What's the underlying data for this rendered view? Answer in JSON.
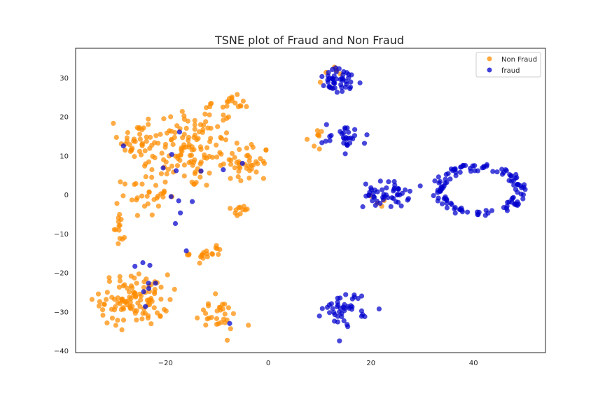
{
  "chart_data": {
    "type": "scatter",
    "title": "TSNE plot of Fraud and Non Fraud",
    "xlabel": "",
    "ylabel": "",
    "xlim": [
      -37.5,
      54
    ],
    "ylim": [
      -40.5,
      37.5
    ],
    "x_ticks": [
      -20,
      0,
      20,
      40
    ],
    "y_ticks": [
      -40,
      -30,
      -20,
      -10,
      0,
      10,
      20,
      30
    ],
    "x_tick_labels": [
      "−20",
      "0",
      "20",
      "40"
    ],
    "y_tick_labels": [
      "−40",
      "−30",
      "−20",
      "−10",
      "0",
      "10",
      "20",
      "30"
    ],
    "grid": false,
    "legend_position": "top-right",
    "series": [
      {
        "name": "Non Fraud",
        "color": "#ff8c00",
        "clusters": [
          {
            "cx": -16,
            "cy": 12,
            "rx": 10,
            "ry": 10,
            "n": 140,
            "shape": "blob"
          },
          {
            "cx": -26,
            "cy": 14,
            "rx": 3,
            "ry": 4,
            "n": 25,
            "shape": "blob"
          },
          {
            "cx": -4,
            "cy": 8,
            "rx": 4,
            "ry": 5,
            "n": 40,
            "shape": "blob"
          },
          {
            "cx": -8,
            "cy": 23,
            "rx": 4,
            "ry": 2,
            "n": 20,
            "shape": "blob"
          },
          {
            "cx": -24,
            "cy": 0,
            "rx": 4,
            "ry": 5,
            "n": 30,
            "shape": "blob"
          },
          {
            "cx": -29,
            "cy": -8,
            "rx": 1,
            "ry": 6,
            "n": 14,
            "shape": "blob"
          },
          {
            "cx": -26,
            "cy": -27,
            "rx": 6,
            "ry": 6,
            "n": 110,
            "shape": "blob"
          },
          {
            "cx": -10,
            "cy": -31,
            "rx": 4,
            "ry": 4,
            "n": 30,
            "shape": "blob"
          },
          {
            "cx": -12,
            "cy": -15,
            "rx": 3,
            "ry": 2,
            "n": 20,
            "shape": "blob"
          },
          {
            "cx": -5,
            "cy": -4,
            "rx": 2,
            "ry": 1,
            "n": 10,
            "shape": "blob"
          },
          {
            "cx": 8,
            "cy": 14,
            "rx": 2,
            "ry": 2,
            "n": 8,
            "shape": "blob"
          },
          {
            "cx": 14,
            "cy": 30,
            "rx": 3,
            "ry": 3,
            "n": 6,
            "shape": "blob"
          },
          {
            "cx": 22,
            "cy": -2,
            "rx": 3,
            "ry": 2,
            "n": 4,
            "shape": "blob"
          }
        ]
      },
      {
        "name": "fraud",
        "color": "#0000cd",
        "clusters": [
          {
            "cx": 14,
            "cy": 29,
            "rx": 4,
            "ry": 3,
            "n": 45,
            "shape": "blob"
          },
          {
            "cx": 15,
            "cy": 15,
            "rx": 4,
            "ry": 3,
            "n": 30,
            "shape": "blob"
          },
          {
            "cx": 23,
            "cy": 0,
            "rx": 4,
            "ry": 3,
            "n": 50,
            "shape": "blob"
          },
          {
            "cx": 15,
            "cy": -29,
            "rx": 4,
            "ry": 4,
            "n": 45,
            "shape": "blob"
          },
          {
            "cx": 41,
            "cy": 1,
            "rx": 8,
            "ry": 6,
            "n": 120,
            "shape": "ring"
          },
          {
            "cx": -15,
            "cy": 0,
            "rx": 10,
            "ry": 20,
            "n": 15,
            "shape": "blob"
          },
          {
            "cx": -25,
            "cy": -22,
            "rx": 4,
            "ry": 8,
            "n": 8,
            "shape": "blob"
          }
        ]
      }
    ]
  }
}
